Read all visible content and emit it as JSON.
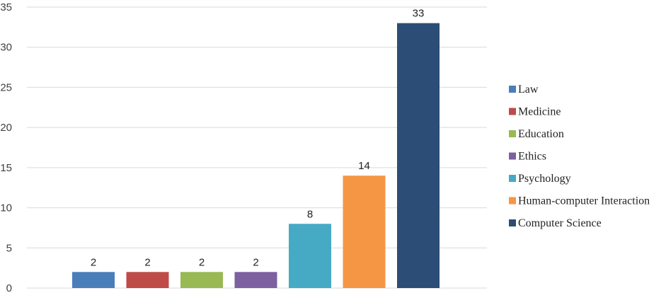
{
  "chart_data": {
    "type": "bar",
    "title": "",
    "xlabel": "",
    "ylabel": "",
    "ylim": [
      0,
      35
    ],
    "yticks": [
      0,
      5,
      10,
      15,
      20,
      25,
      30,
      35
    ],
    "grid": true,
    "legend_position": "right",
    "data_labels": true,
    "categories": [
      "Law",
      "Medicine",
      "Education",
      "Ethics",
      "Psychology",
      "Human-computer Interaction",
      "Computer Science"
    ],
    "values": [
      2,
      2,
      2,
      2,
      8,
      14,
      33
    ],
    "colors": [
      "#4a7ebb",
      "#be4b48",
      "#98b954",
      "#7d60a0",
      "#46aac4",
      "#f59645",
      "#2c4d75"
    ]
  }
}
